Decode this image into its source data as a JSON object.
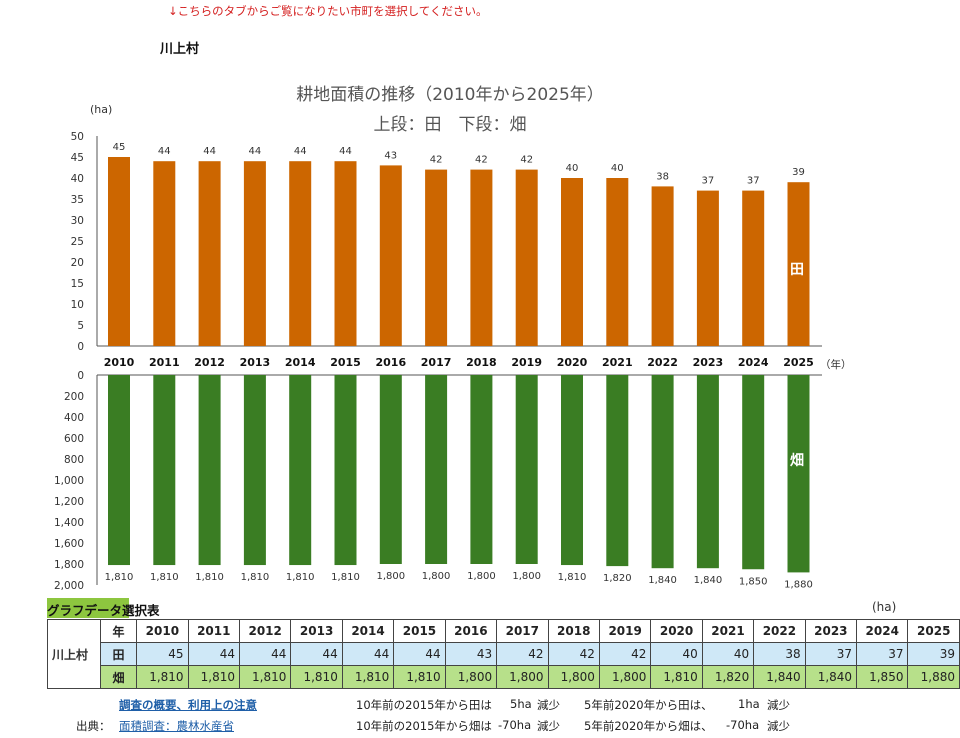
{
  "notice": "↓こちらのタブからご覧になりたい市町を選択してください。",
  "village_name": "川上村",
  "chart_title_line1": "耕地面積の推移（2010年から2025年）",
  "chart_title_line2": "上段：田　下段：畑",
  "colors": {
    "ta": "#cc6600",
    "hata": "#3a7d23",
    "notice": "#d42020"
  },
  "chart_data": [
    {
      "type": "bar",
      "series_label": "田",
      "ylabel": "(ha)",
      "xlabel": "（年）",
      "ylim": [
        0,
        50
      ],
      "yticks": [
        0,
        5,
        10,
        15,
        20,
        25,
        30,
        35,
        40,
        45,
        50
      ],
      "categories": [
        "2010",
        "2011",
        "2012",
        "2013",
        "2014",
        "2015",
        "2016",
        "2017",
        "2018",
        "2019",
        "2020",
        "2021",
        "2022",
        "2023",
        "2024",
        "2025"
      ],
      "values": [
        45,
        44,
        44,
        44,
        44,
        44,
        43,
        42,
        42,
        42,
        40,
        40,
        38,
        37,
        37,
        39
      ],
      "data_labels": [
        "45",
        "44",
        "44",
        "44",
        "44",
        "44",
        "43",
        "42",
        "42",
        "42",
        "40",
        "40",
        "38",
        "37",
        "37",
        "39"
      ]
    },
    {
      "type": "bar",
      "orientation": "downward",
      "series_label": "畑",
      "ylim": [
        0,
        2000
      ],
      "yticks": [
        "0",
        "200",
        "400",
        "600",
        "800",
        "1,000",
        "1,200",
        "1,400",
        "1,600",
        "1,800",
        "2,000"
      ],
      "categories": [
        "2010",
        "2011",
        "2012",
        "2013",
        "2014",
        "2015",
        "2016",
        "2017",
        "2018",
        "2019",
        "2020",
        "2021",
        "2022",
        "2023",
        "2024",
        "2025"
      ],
      "values": [
        1810,
        1810,
        1810,
        1810,
        1810,
        1810,
        1800,
        1800,
        1800,
        1800,
        1810,
        1820,
        1840,
        1840,
        1850,
        1880
      ],
      "data_labels": [
        "1,810",
        "1,810",
        "1,810",
        "1,810",
        "1,810",
        "1,810",
        "1,800",
        "1,800",
        "1,800",
        "1,800",
        "1,810",
        "1,820",
        "1,840",
        "1,840",
        "1,850",
        "1,880"
      ]
    }
  ],
  "table": {
    "title": "グラフデータ選択表",
    "unit": "(ha)",
    "village": "川上村",
    "header_label": "年",
    "years": [
      "2010",
      "2011",
      "2012",
      "2013",
      "2014",
      "2015",
      "2016",
      "2017",
      "2018",
      "2019",
      "2020",
      "2021",
      "2022",
      "2023",
      "2024",
      "2025"
    ],
    "rows": [
      {
        "label": "田",
        "values": [
          "45",
          "44",
          "44",
          "44",
          "44",
          "44",
          "43",
          "42",
          "42",
          "42",
          "40",
          "40",
          "38",
          "37",
          "37",
          "39"
        ]
      },
      {
        "label": "畑",
        "values": [
          "1,810",
          "1,810",
          "1,810",
          "1,810",
          "1,810",
          "1,810",
          "1,800",
          "1,800",
          "1,800",
          "1,800",
          "1,810",
          "1,820",
          "1,840",
          "1,840",
          "1,850",
          "1,880"
        ]
      }
    ]
  },
  "footer": {
    "link_overview": "調査の概要、利用上の注意",
    "source_label": "出典：",
    "link_source": "面積調査：農林水産省",
    "ta_10y_prefix": "10年前の2015年から田は",
    "ta_10y_value": "5ha",
    "ta_10y_suffix": "減少",
    "hata_10y_prefix": "10年前の2015年から畑は",
    "hata_10y_value": "-70ha",
    "hata_10y_suffix": "減少",
    "ta_5y_prefix": "5年前2020年から田は、",
    "ta_5y_value": "1ha",
    "ta_5y_suffix": "減少",
    "hata_5y_prefix": "5年前2020年から畑は、",
    "hata_5y_value": "-70ha",
    "hata_5y_suffix": "減少"
  }
}
